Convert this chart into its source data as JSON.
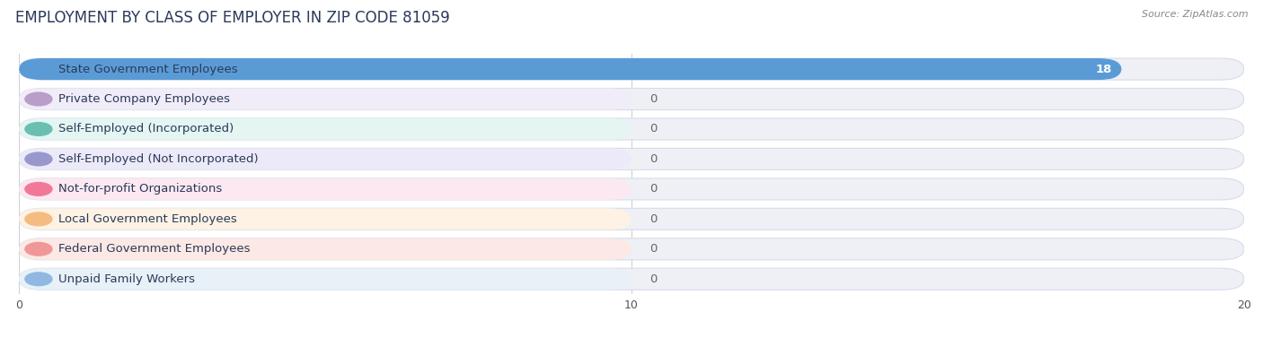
{
  "title": "EMPLOYMENT BY CLASS OF EMPLOYER IN ZIP CODE 81059",
  "source": "Source: ZipAtlas.com",
  "categories": [
    "State Government Employees",
    "Private Company Employees",
    "Self-Employed (Incorporated)",
    "Self-Employed (Not Incorporated)",
    "Not-for-profit Organizations",
    "Local Government Employees",
    "Federal Government Employees",
    "Unpaid Family Workers"
  ],
  "values": [
    18,
    0,
    0,
    0,
    0,
    0,
    0,
    0
  ],
  "bar_colors": [
    "#5b9bd5",
    "#b89ec8",
    "#6abfb0",
    "#9898cc",
    "#f07898",
    "#f5bb80",
    "#f09898",
    "#90b8e0"
  ],
  "bar_bg_colors": [
    "#eaf2fb",
    "#f0ecf8",
    "#e4f5f2",
    "#eceaf8",
    "#fce8f0",
    "#fdf2e4",
    "#fce8e4",
    "#e8f0f8"
  ],
  "row_bg_color": "#f0f2f5",
  "xlim": [
    0,
    20
  ],
  "xticks": [
    0,
    10,
    20
  ],
  "label_fontsize": 9.5,
  "title_fontsize": 12,
  "value_label_color_bar": "#ffffff",
  "value_label_color_zero": "#666666",
  "background_color": "#ffffff",
  "grid_color": "#d0d0d8"
}
